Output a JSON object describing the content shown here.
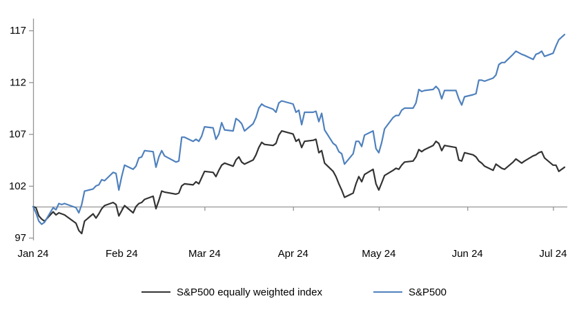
{
  "chart_data": {
    "type": "line",
    "title": "",
    "x_axis": {
      "unit": "days since Jan 1, 2024",
      "range_days": [
        0,
        186
      ],
      "tick_days": [
        0,
        31,
        60,
        91,
        121,
        152,
        182
      ],
      "tick_labels": [
        "Jan 24",
        "Feb 24",
        "Mar 24",
        "Apr 24",
        "May 24",
        "Jun 24",
        "Jul 24"
      ]
    },
    "y_axis": {
      "ticks": [
        97,
        102,
        107,
        112,
        117
      ],
      "tick_labels": [
        "97",
        "102",
        "107",
        "112",
        "117"
      ],
      "ylim": [
        97,
        117
      ],
      "baseline_value": 100
    },
    "grid": "off",
    "legend_position": "bottom-center",
    "series": [
      {
        "name": "S&P500 equally weighted index",
        "color": "#333333",
        "points": [
          [
            0,
            100
          ],
          [
            1,
            99.9
          ],
          [
            2,
            99.1
          ],
          [
            3,
            98.8
          ],
          [
            4,
            98.6
          ],
          [
            7,
            99.5
          ],
          [
            8,
            99.2
          ],
          [
            9,
            99.4
          ],
          [
            10,
            99.3
          ],
          [
            11,
            99.2
          ],
          [
            15,
            98.4
          ],
          [
            16,
            97.7
          ],
          [
            17,
            97.4
          ],
          [
            18,
            98.6
          ],
          [
            21,
            99.3
          ],
          [
            22,
            98.9
          ],
          [
            23,
            99.3
          ],
          [
            24,
            99.8
          ],
          [
            25,
            100.1
          ],
          [
            28,
            100.4
          ],
          [
            29,
            100.2
          ],
          [
            30,
            99.1
          ],
          [
            31,
            99.6
          ],
          [
            32,
            100.1
          ],
          [
            35,
            99.4
          ],
          [
            36,
            100.0
          ],
          [
            37,
            100.3
          ],
          [
            38,
            100.4
          ],
          [
            39,
            100.7
          ],
          [
            42,
            101.0
          ],
          [
            43,
            99.8
          ],
          [
            44,
            100.6
          ],
          [
            45,
            101.5
          ],
          [
            46,
            101.4
          ],
          [
            50,
            101.2
          ],
          [
            51,
            101.3
          ],
          [
            52,
            102.0
          ],
          [
            53,
            102.2
          ],
          [
            56,
            102.1
          ],
          [
            57,
            102.4
          ],
          [
            58,
            102.2
          ],
          [
            59,
            102.8
          ],
          [
            60,
            103.4
          ],
          [
            63,
            103.3
          ],
          [
            64,
            102.9
          ],
          [
            65,
            103.5
          ],
          [
            66,
            104.0
          ],
          [
            67,
            104.2
          ],
          [
            70,
            103.9
          ],
          [
            71,
            104.5
          ],
          [
            72,
            104.8
          ],
          [
            73,
            104.3
          ],
          [
            74,
            104.1
          ],
          [
            77,
            104.5
          ],
          [
            78,
            105.0
          ],
          [
            79,
            105.7
          ],
          [
            80,
            106.2
          ],
          [
            81,
            106.0
          ],
          [
            84,
            105.9
          ],
          [
            85,
            106.1
          ],
          [
            86,
            106.9
          ],
          [
            87,
            107.3
          ],
          [
            91,
            107.0
          ],
          [
            92,
            106.3
          ],
          [
            93,
            106.5
          ],
          [
            94,
            105.7
          ],
          [
            95,
            106.3
          ],
          [
            98,
            106.4
          ],
          [
            99,
            106.5
          ],
          [
            100,
            105.2
          ],
          [
            101,
            105.4
          ],
          [
            102,
            104.2
          ],
          [
            105,
            103.4
          ],
          [
            106,
            102.9
          ],
          [
            107,
            102.2
          ],
          [
            108,
            101.6
          ],
          [
            109,
            100.9
          ],
          [
            112,
            101.3
          ],
          [
            113,
            102.2
          ],
          [
            114,
            102.9
          ],
          [
            115,
            102.4
          ],
          [
            116,
            103.1
          ],
          [
            119,
            103.6
          ],
          [
            120,
            102.2
          ],
          [
            121,
            101.6
          ],
          [
            122,
            102.3
          ],
          [
            123,
            103.0
          ],
          [
            126,
            103.5
          ],
          [
            127,
            103.7
          ],
          [
            128,
            103.6
          ],
          [
            129,
            104.0
          ],
          [
            130,
            104.3
          ],
          [
            133,
            104.4
          ],
          [
            134,
            104.8
          ],
          [
            135,
            105.5
          ],
          [
            136,
            105.3
          ],
          [
            137,
            105.5
          ],
          [
            140,
            105.9
          ],
          [
            141,
            106.3
          ],
          [
            142,
            106.1
          ],
          [
            143,
            105.4
          ],
          [
            144,
            105.9
          ],
          [
            148,
            105.7
          ],
          [
            149,
            104.5
          ],
          [
            150,
            104.4
          ],
          [
            151,
            105.2
          ],
          [
            154,
            105.0
          ],
          [
            155,
            104.8
          ],
          [
            156,
            104.4
          ],
          [
            157,
            104.2
          ],
          [
            158,
            103.9
          ],
          [
            161,
            103.5
          ],
          [
            162,
            104.1
          ],
          [
            163,
            103.9
          ],
          [
            164,
            103.7
          ],
          [
            165,
            103.6
          ],
          [
            168,
            104.3
          ],
          [
            169,
            104.6
          ],
          [
            171,
            104.2
          ],
          [
            172,
            104.4
          ],
          [
            175,
            104.9
          ],
          [
            176,
            105.0
          ],
          [
            177,
            105.2
          ],
          [
            178,
            105.3
          ],
          [
            179,
            104.7
          ],
          [
            182,
            104.0
          ],
          [
            183,
            104.0
          ],
          [
            184,
            103.4
          ],
          [
            186,
            103.8
          ]
        ]
      },
      {
        "name": "S&P500",
        "color": "#4F81BD",
        "points": [
          [
            0,
            100
          ],
          [
            1,
            99.4
          ],
          [
            2,
            98.6
          ],
          [
            3,
            98.3
          ],
          [
            4,
            98.5
          ],
          [
            7,
            99.9
          ],
          [
            8,
            99.7
          ],
          [
            9,
            100.3
          ],
          [
            10,
            100.2
          ],
          [
            11,
            100.3
          ],
          [
            15,
            99.9
          ],
          [
            16,
            99.4
          ],
          [
            17,
            100.2
          ],
          [
            18,
            101.5
          ],
          [
            21,
            101.7
          ],
          [
            22,
            102.0
          ],
          [
            23,
            102.1
          ],
          [
            24,
            102.6
          ],
          [
            25,
            102.5
          ],
          [
            28,
            103.3
          ],
          [
            29,
            103.2
          ],
          [
            30,
            101.6
          ],
          [
            31,
            102.9
          ],
          [
            32,
            104.0
          ],
          [
            35,
            103.6
          ],
          [
            36,
            103.9
          ],
          [
            37,
            104.7
          ],
          [
            38,
            104.8
          ],
          [
            39,
            105.4
          ],
          [
            42,
            105.3
          ],
          [
            43,
            103.8
          ],
          [
            44,
            104.8
          ],
          [
            45,
            105.4
          ],
          [
            46,
            104.9
          ],
          [
            50,
            104.3
          ],
          [
            51,
            104.4
          ],
          [
            52,
            106.7
          ],
          [
            53,
            106.7
          ],
          [
            56,
            106.3
          ],
          [
            57,
            106.5
          ],
          [
            58,
            106.3
          ],
          [
            59,
            106.8
          ],
          [
            60,
            107.7
          ],
          [
            63,
            107.6
          ],
          [
            64,
            106.5
          ],
          [
            65,
            107.0
          ],
          [
            66,
            108.1
          ],
          [
            67,
            107.4
          ],
          [
            70,
            107.3
          ],
          [
            71,
            108.5
          ],
          [
            72,
            108.3
          ],
          [
            73,
            108.0
          ],
          [
            74,
            107.3
          ],
          [
            77,
            108.0
          ],
          [
            78,
            108.6
          ],
          [
            79,
            109.5
          ],
          [
            80,
            109.9
          ],
          [
            81,
            109.7
          ],
          [
            84,
            109.4
          ],
          [
            85,
            109.1
          ],
          [
            86,
            110.0
          ],
          [
            87,
            110.2
          ],
          [
            91,
            109.9
          ],
          [
            92,
            109.1
          ],
          [
            93,
            109.3
          ],
          [
            94,
            107.9
          ],
          [
            95,
            109.1
          ],
          [
            98,
            109.1
          ],
          [
            99,
            109.2
          ],
          [
            100,
            108.2
          ],
          [
            101,
            109.0
          ],
          [
            102,
            107.4
          ],
          [
            105,
            106.1
          ],
          [
            106,
            105.9
          ],
          [
            107,
            105.3
          ],
          [
            108,
            105.1
          ],
          [
            109,
            104.1
          ],
          [
            112,
            105.1
          ],
          [
            113,
            106.3
          ],
          [
            114,
            106.3
          ],
          [
            115,
            105.8
          ],
          [
            116,
            106.9
          ],
          [
            119,
            107.3
          ],
          [
            120,
            105.6
          ],
          [
            121,
            105.2
          ],
          [
            122,
            106.2
          ],
          [
            123,
            107.5
          ],
          [
            126,
            108.6
          ],
          [
            127,
            108.8
          ],
          [
            128,
            108.8
          ],
          [
            129,
            109.3
          ],
          [
            130,
            109.5
          ],
          [
            133,
            109.5
          ],
          [
            134,
            110.0
          ],
          [
            135,
            111.3
          ],
          [
            136,
            111.1
          ],
          [
            137,
            111.2
          ],
          [
            140,
            111.3
          ],
          [
            141,
            111.6
          ],
          [
            142,
            111.3
          ],
          [
            143,
            110.4
          ],
          [
            144,
            111.2
          ],
          [
            148,
            111.2
          ],
          [
            149,
            110.4
          ],
          [
            150,
            109.8
          ],
          [
            151,
            110.6
          ],
          [
            154,
            110.8
          ],
          [
            155,
            110.9
          ],
          [
            156,
            112.2
          ],
          [
            157,
            112.2
          ],
          [
            158,
            112.1
          ],
          [
            161,
            112.4
          ],
          [
            162,
            112.7
          ],
          [
            163,
            113.7
          ],
          [
            164,
            113.9
          ],
          [
            165,
            113.9
          ],
          [
            168,
            114.7
          ],
          [
            169,
            115.0
          ],
          [
            171,
            114.7
          ],
          [
            172,
            114.6
          ],
          [
            175,
            114.2
          ],
          [
            176,
            114.7
          ],
          [
            177,
            114.8
          ],
          [
            178,
            115.0
          ],
          [
            179,
            114.5
          ],
          [
            182,
            114.8
          ],
          [
            183,
            115.5
          ],
          [
            184,
            116.1
          ],
          [
            186,
            116.6
          ]
        ]
      }
    ]
  },
  "legend": {
    "items": [
      {
        "label": "S&P500 equally weighted index",
        "color": "#333333"
      },
      {
        "label": "S&P500",
        "color": "#4F81BD"
      }
    ]
  },
  "colors": {
    "axis": "#949494",
    "baseline": "#949494",
    "text": "#000000",
    "sp500": "#4F81BD",
    "sp500_equal_weight": "#333333",
    "background": "#ffffff"
  }
}
